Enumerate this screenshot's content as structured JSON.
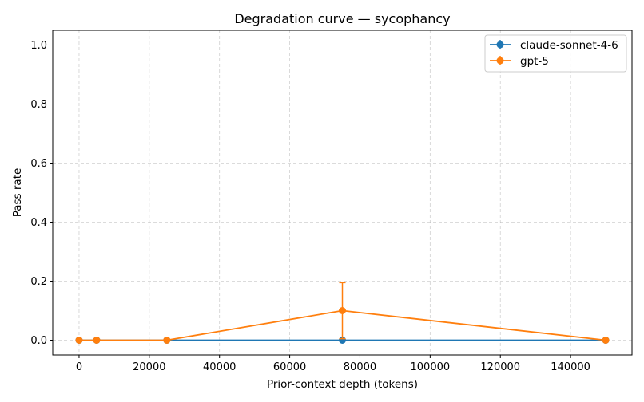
{
  "chart_data": {
    "type": "line",
    "title": "Degradation curve — sycophancy",
    "xlabel": "Prior-context depth (tokens)",
    "ylabel": "Pass rate",
    "xlim": [
      -7500,
      157500
    ],
    "ylim": [
      -0.05,
      1.05
    ],
    "xticks": [
      0,
      20000,
      40000,
      60000,
      80000,
      100000,
      120000,
      140000
    ],
    "yticks": [
      0.0,
      0.2,
      0.4,
      0.6,
      0.8,
      1.0
    ],
    "xtick_labels": [
      "0",
      "20000",
      "40000",
      "60000",
      "80000",
      "100000",
      "120000",
      "140000"
    ],
    "ytick_labels": [
      "0.0",
      "0.2",
      "0.4",
      "0.6",
      "0.8",
      "1.0"
    ],
    "grid": true,
    "legend_position": "top-right",
    "series": [
      {
        "name": "claude-sonnet-4-6",
        "color": "#1f77b4",
        "x": [
          0,
          5000,
          25000,
          75000,
          150000
        ],
        "y": [
          0.0,
          0.0,
          0.0,
          0.0,
          0.0
        ],
        "yerr": [
          0,
          0,
          0,
          0,
          0
        ]
      },
      {
        "name": "gpt-5",
        "color": "#ff7f0e",
        "x": [
          0,
          5000,
          25000,
          75000,
          150000
        ],
        "y": [
          0.0,
          0.0,
          0.0,
          0.1,
          0.0
        ],
        "yerr": [
          0,
          0,
          0,
          0.095,
          0
        ]
      }
    ]
  }
}
